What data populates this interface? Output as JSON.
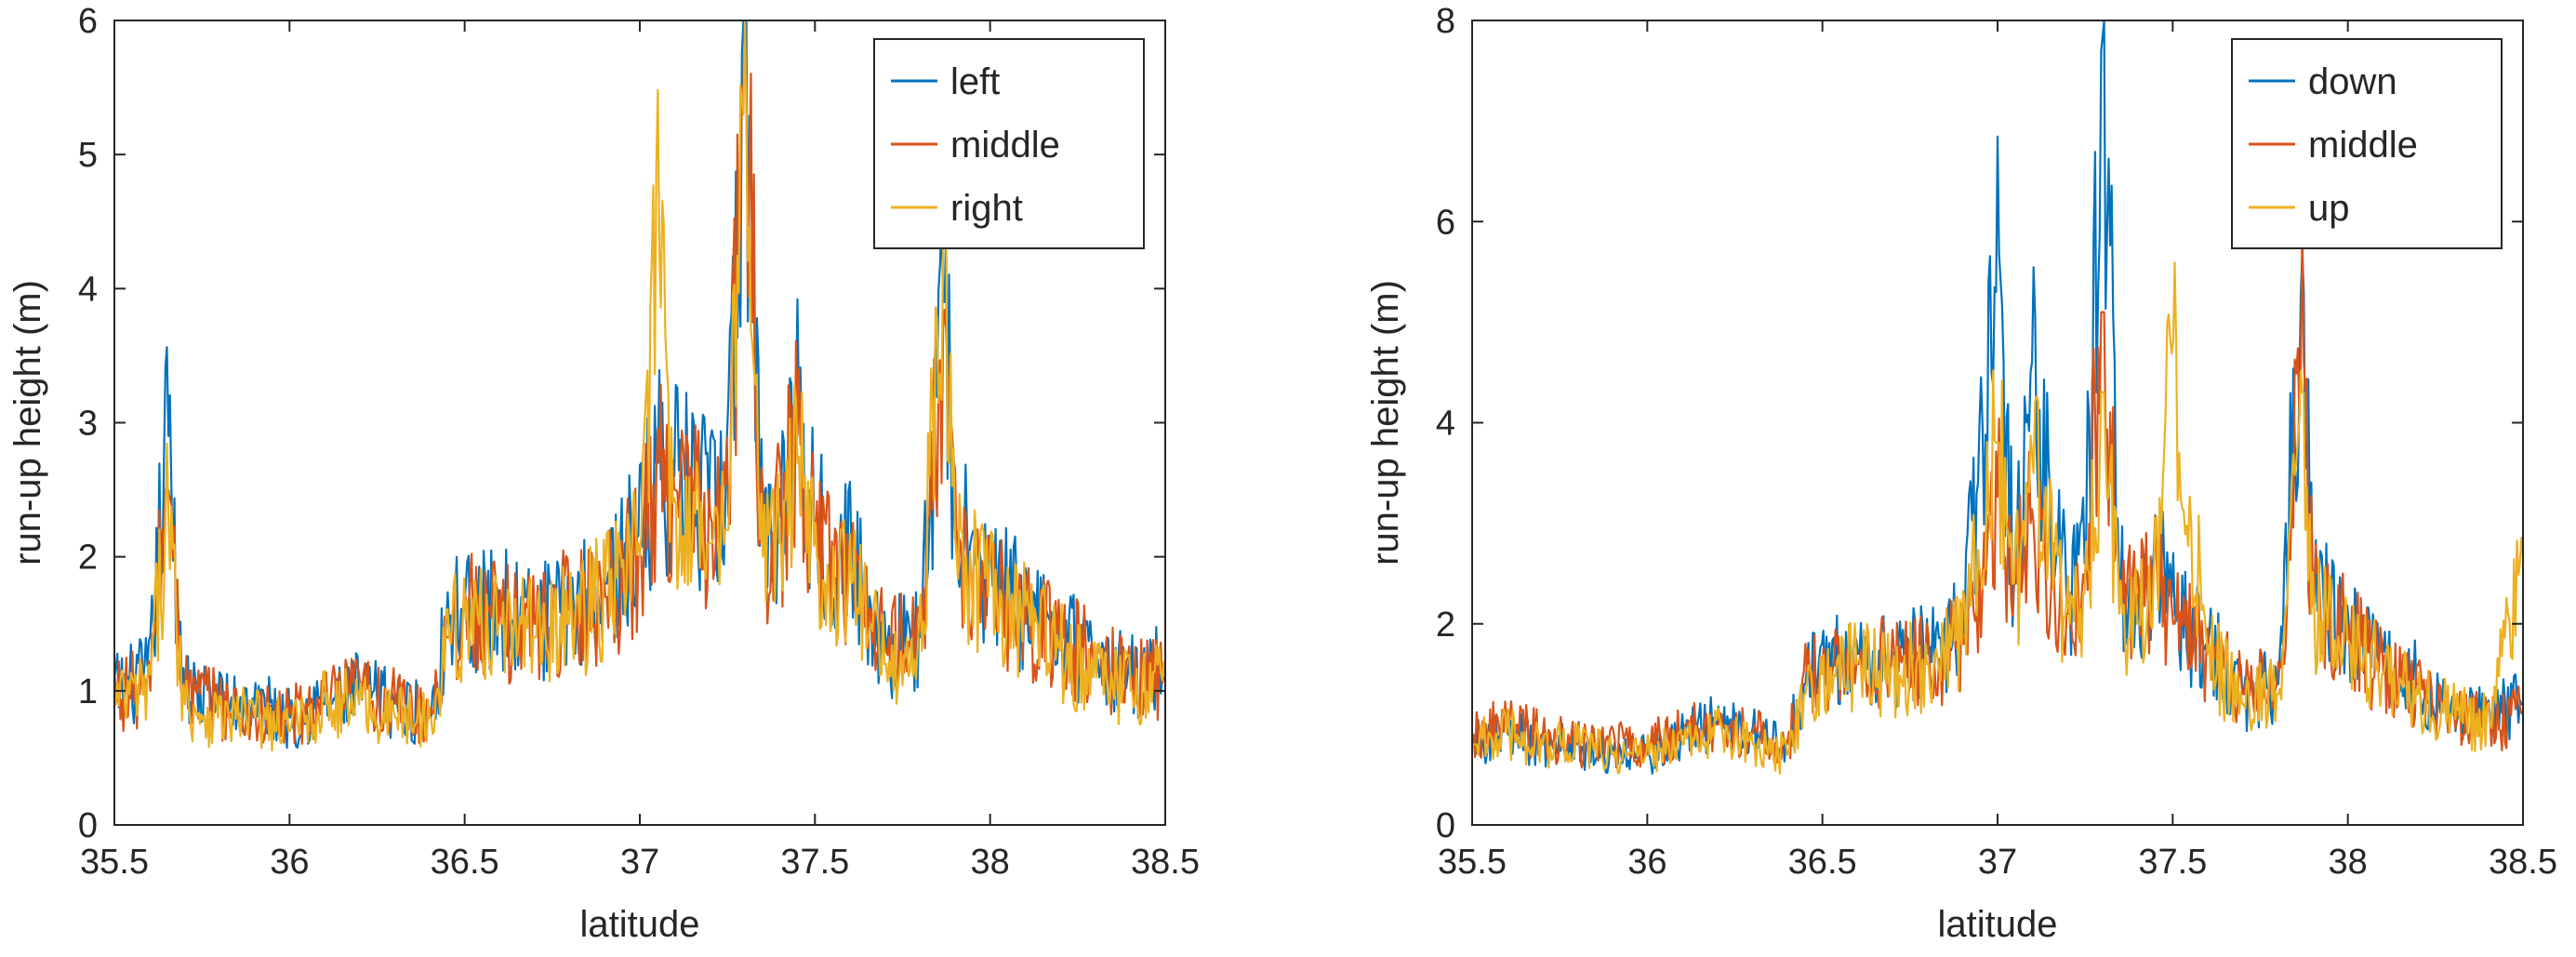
{
  "chart_data": [
    {
      "type": "line",
      "xlabel": "latitude",
      "ylabel": "run-up height (m)",
      "xlim": [
        35.5,
        38.5
      ],
      "ylim": [
        0,
        6
      ],
      "xticks": [
        "35.5",
        "36",
        "36.5",
        "37",
        "37.5",
        "38",
        "38.5"
      ],
      "yticks": [
        "0",
        "1",
        "2",
        "3",
        "4",
        "5",
        "6"
      ],
      "grid": false,
      "legend_position": "top-right",
      "series_colors": [
        "#0072BD",
        "#D95319",
        "#EDB120"
      ],
      "series": [
        {
          "name": "left",
          "x": [
            35.5,
            35.6,
            35.65,
            35.7,
            35.8,
            35.9,
            36.0,
            36.1,
            36.2,
            36.3,
            36.4,
            36.45,
            36.5,
            36.6,
            36.7,
            36.8,
            36.9,
            37.0,
            37.05,
            37.1,
            37.2,
            37.25,
            37.3,
            37.35,
            37.4,
            37.45,
            37.5,
            37.6,
            37.7,
            37.8,
            37.87,
            37.9,
            38.0,
            38.1,
            38.2,
            38.3,
            38.4,
            38.5
          ],
          "values": [
            1.0,
            1.1,
            2.9,
            1.0,
            0.9,
            0.9,
            0.8,
            0.9,
            1.0,
            0.9,
            0.8,
            1.5,
            1.6,
            1.6,
            1.5,
            1.6,
            1.8,
            2.1,
            2.7,
            2.6,
            2.3,
            2.4,
            5.9,
            2.2,
            2.3,
            3.1,
            2.2,
            2.0,
            1.3,
            1.4,
            3.9,
            2.2,
            1.8,
            1.6,
            1.4,
            1.2,
            1.1,
            1.2
          ]
        },
        {
          "name": "middle",
          "x": [
            35.5,
            35.6,
            35.65,
            35.7,
            35.8,
            35.9,
            36.0,
            36.1,
            36.2,
            36.3,
            36.4,
            36.45,
            36.5,
            36.6,
            36.7,
            36.8,
            36.9,
            37.0,
            37.05,
            37.1,
            37.2,
            37.25,
            37.3,
            37.35,
            37.4,
            37.45,
            37.5,
            37.6,
            37.7,
            37.8,
            37.87,
            37.9,
            38.0,
            38.1,
            38.2,
            38.3,
            38.4,
            38.5
          ],
          "values": [
            1.0,
            1.0,
            2.5,
            1.0,
            0.9,
            0.8,
            0.8,
            0.9,
            1.0,
            0.9,
            0.8,
            1.4,
            1.6,
            1.5,
            1.5,
            1.6,
            1.7,
            2.0,
            2.6,
            2.5,
            2.2,
            2.3,
            5.5,
            2.1,
            2.2,
            2.9,
            2.1,
            1.9,
            1.3,
            1.4,
            3.7,
            2.1,
            1.7,
            1.5,
            1.4,
            1.2,
            1.1,
            1.1
          ]
        },
        {
          "name": "right",
          "x": [
            35.5,
            35.6,
            35.65,
            35.7,
            35.8,
            35.9,
            36.0,
            36.1,
            36.2,
            36.3,
            36.4,
            36.45,
            36.5,
            36.6,
            36.7,
            36.8,
            36.9,
            37.0,
            37.05,
            37.1,
            37.2,
            37.25,
            37.3,
            37.35,
            37.4,
            37.45,
            37.5,
            37.6,
            37.7,
            37.8,
            37.87,
            37.9,
            38.0,
            38.1,
            38.2,
            38.3,
            38.4,
            38.5
          ],
          "values": [
            0.9,
            1.0,
            2.3,
            0.9,
            0.8,
            0.8,
            0.7,
            0.9,
            0.9,
            0.8,
            0.8,
            1.4,
            1.5,
            1.5,
            1.4,
            1.5,
            1.7,
            2.0,
            4.3,
            2.4,
            2.1,
            2.2,
            5.3,
            2.0,
            2.1,
            2.7,
            2.0,
            1.8,
            1.2,
            1.3,
            4.3,
            2.0,
            1.7,
            1.5,
            1.3,
            1.1,
            1.0,
            1.1
          ]
        }
      ]
    },
    {
      "type": "line",
      "xlabel": "latitude",
      "ylabel": "run-up height (m)",
      "xlim": [
        35.5,
        38.5
      ],
      "ylim": [
        0,
        8
      ],
      "xticks": [
        "35.5",
        "36",
        "36.5",
        "37",
        "37.5",
        "38",
        "38.5"
      ],
      "yticks": [
        "0",
        "2",
        "4",
        "6",
        "8"
      ],
      "grid": false,
      "legend_position": "top-right",
      "series_colors": [
        "#0072BD",
        "#D95319",
        "#EDB120"
      ],
      "series": [
        {
          "name": "down",
          "x": [
            35.5,
            35.6,
            35.7,
            35.8,
            35.9,
            36.0,
            36.1,
            36.2,
            36.3,
            36.4,
            36.45,
            36.5,
            36.6,
            36.7,
            36.8,
            36.9,
            37.0,
            37.05,
            37.1,
            37.2,
            37.25,
            37.3,
            37.35,
            37.4,
            37.45,
            37.5,
            37.6,
            37.7,
            37.8,
            37.87,
            37.9,
            38.0,
            38.1,
            38.2,
            38.3,
            38.4,
            38.5
          ],
          "values": [
            0.8,
            0.9,
            0.8,
            0.8,
            0.7,
            0.7,
            0.9,
            1.0,
            0.9,
            0.8,
            1.4,
            1.6,
            1.7,
            1.6,
            1.7,
            1.9,
            5.3,
            2.4,
            4.5,
            2.2,
            2.6,
            7.7,
            2.3,
            2.2,
            2.7,
            2.1,
            1.8,
            1.3,
            1.4,
            5.3,
            2.3,
            2.0,
            1.6,
            1.4,
            1.2,
            1.1,
            1.2
          ]
        },
        {
          "name": "middle",
          "x": [
            35.5,
            35.6,
            35.7,
            35.8,
            35.9,
            36.0,
            36.1,
            36.2,
            36.3,
            36.4,
            36.45,
            36.5,
            36.6,
            36.7,
            36.8,
            36.9,
            37.0,
            37.05,
            37.1,
            37.2,
            37.25,
            37.3,
            37.35,
            37.4,
            37.45,
            37.5,
            37.6,
            37.7,
            37.8,
            37.87,
            37.9,
            38.0,
            38.1,
            38.2,
            38.3,
            38.4,
            38.5
          ],
          "values": [
            0.9,
            1.0,
            0.9,
            0.8,
            0.8,
            0.8,
            0.9,
            1.0,
            0.9,
            0.8,
            1.4,
            1.5,
            1.6,
            1.6,
            1.6,
            1.8,
            3.2,
            2.4,
            3.0,
            2.1,
            2.4,
            5.1,
            2.2,
            2.1,
            2.6,
            2.0,
            1.7,
            1.3,
            1.4,
            4.6,
            2.2,
            1.9,
            1.5,
            1.3,
            1.1,
            1.0,
            1.1
          ]
        },
        {
          "name": "up",
          "x": [
            35.5,
            35.6,
            35.7,
            35.8,
            35.9,
            36.0,
            36.1,
            36.2,
            36.3,
            36.4,
            36.45,
            36.5,
            36.6,
            36.7,
            36.8,
            36.9,
            37.0,
            37.05,
            37.1,
            37.2,
            37.25,
            37.3,
            37.35,
            37.4,
            37.45,
            37.5,
            37.6,
            37.7,
            37.8,
            37.87,
            37.9,
            38.0,
            38.1,
            38.2,
            38.3,
            38.4,
            38.5
          ],
          "values": [
            0.8,
            0.9,
            0.8,
            0.8,
            0.7,
            0.7,
            0.8,
            0.9,
            0.8,
            0.7,
            1.3,
            1.5,
            1.6,
            1.5,
            1.6,
            1.8,
            3.8,
            2.3,
            3.5,
            2.0,
            2.3,
            4.3,
            2.1,
            2.0,
            2.5,
            4.5,
            1.7,
            1.2,
            1.3,
            4.3,
            2.1,
            1.8,
            1.5,
            1.3,
            1.1,
            1.0,
            2.5
          ]
        }
      ]
    }
  ]
}
